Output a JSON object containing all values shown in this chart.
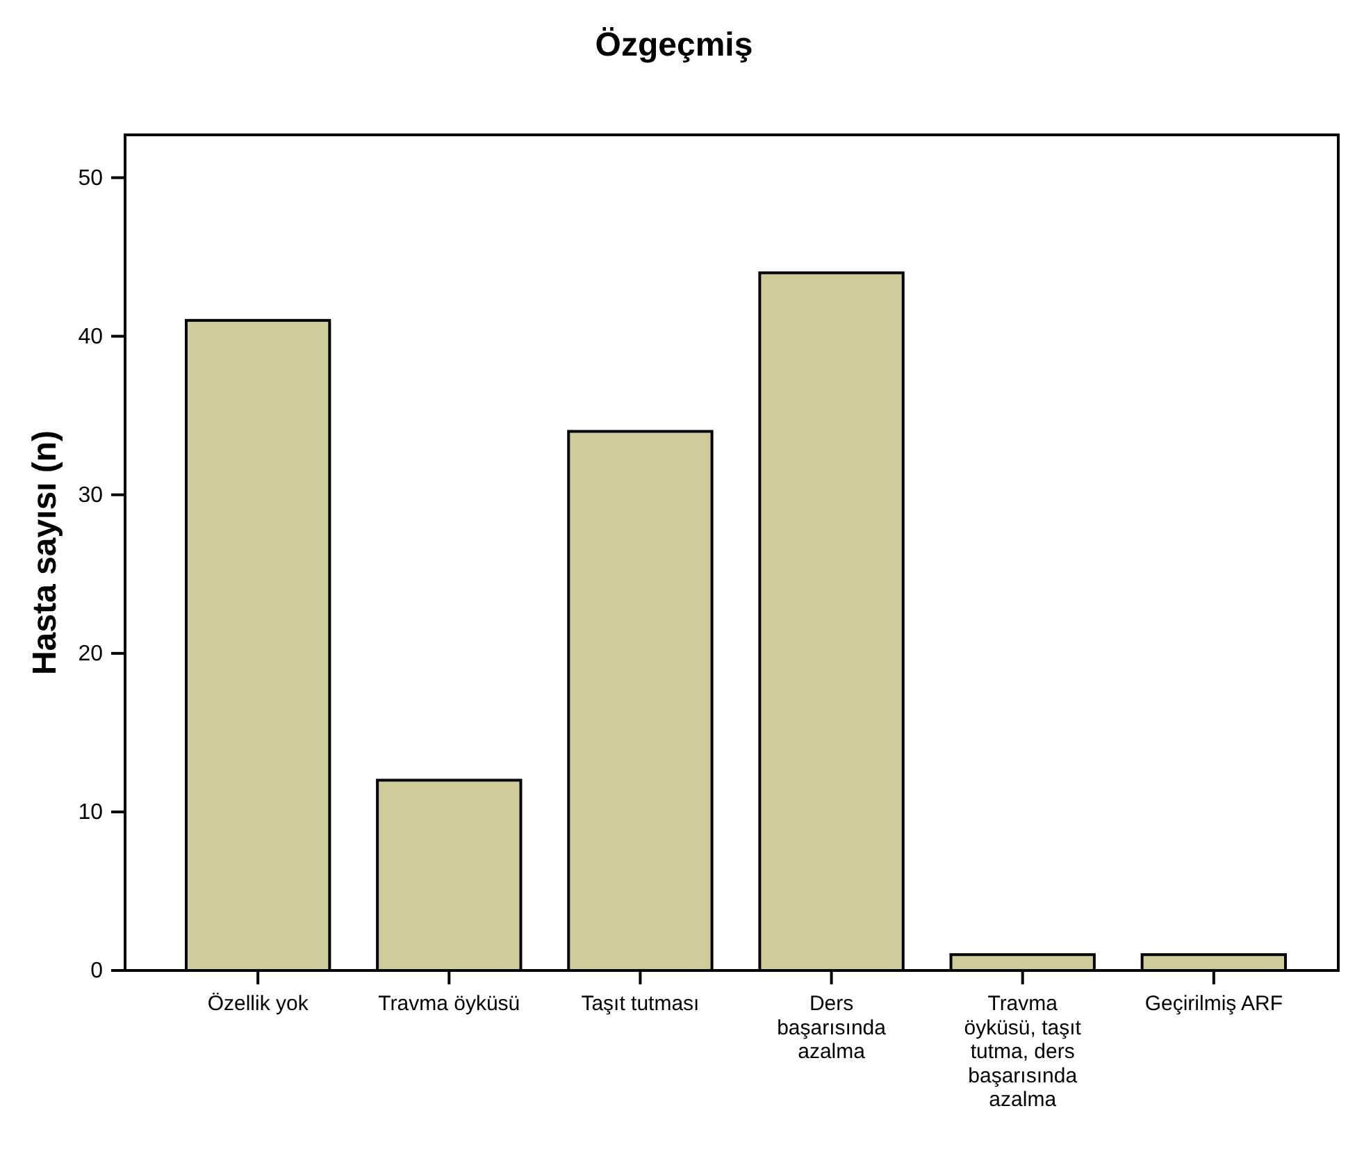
{
  "chart_data": {
    "type": "bar",
    "title": "Özgeçmiş",
    "ylabel": "Hasta sayısı (n)",
    "categories": [
      "Özellik yok",
      "Travma öyküsü",
      "Taşıt tutması",
      "Ders başarısında azalma",
      "Travma öyküsü, taşıt tutma, ders başarısında azalma",
      "Geçirilmiş ARF"
    ],
    "values": [
      41,
      12,
      34,
      44,
      1,
      1
    ],
    "color": "#cfcc9a",
    "ylim": [
      0,
      52.7
    ],
    "yticks": [
      0,
      10,
      20,
      30,
      40,
      50
    ]
  }
}
